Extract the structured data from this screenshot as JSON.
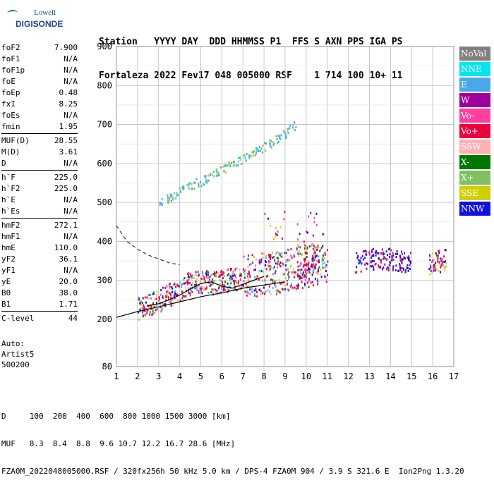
{
  "logo": {
    "line1": "Lowell",
    "line2": "DIGISONDE"
  },
  "header": {
    "row1": "Station   YYYY DAY  DDD HHMMSS P1  FFS S AXN PPS IGA PS",
    "row2": "Fortaleza 2022 Fev17 048 005000 RSF    1 714 100 10+ 11"
  },
  "params": {
    "group1": [
      {
        "label": "foF2",
        "value": "7.900"
      },
      {
        "label": "foF1",
        "value": "N/A"
      },
      {
        "label": "foF1p",
        "value": "N/A"
      },
      {
        "label": "foE",
        "value": "N/A"
      },
      {
        "label": "foEp",
        "value": "0.48"
      },
      {
        "label": "fxI",
        "value": "8.25"
      },
      {
        "label": "foEs",
        "value": "N/A"
      },
      {
        "label": "fmin",
        "value": "1.95"
      }
    ],
    "group2": [
      {
        "label": "MUF(D)",
        "value": "28.55"
      },
      {
        "label": "M(D)",
        "value": "3.61"
      },
      {
        "label": "D",
        "value": "N/A"
      }
    ],
    "group3": [
      {
        "label": "h`F",
        "value": "225.0"
      },
      {
        "label": "h`F2",
        "value": "225.0"
      },
      {
        "label": "h`E",
        "value": "N/A"
      },
      {
        "label": "h`Es",
        "value": "N/A"
      }
    ],
    "group4": [
      {
        "label": "hmF2",
        "value": "272.1"
      },
      {
        "label": "hmF1",
        "value": "N/A"
      },
      {
        "label": "hmE",
        "value": "110.0"
      },
      {
        "label": "yF2",
        "value": "36.1"
      },
      {
        "label": "yF1",
        "value": "N/A"
      },
      {
        "label": "yE",
        "value": "20.0"
      },
      {
        "label": "B0",
        "value": "38.0"
      },
      {
        "label": "B1",
        "value": "1.71"
      }
    ],
    "group5": [
      {
        "label": "C-level",
        "value": "44"
      }
    ]
  },
  "auto": {
    "line1": "Auto:",
    "line2": "Artist5",
    "line3": "500200"
  },
  "legend": [
    {
      "label": "NoVal",
      "color": "#808080"
    },
    {
      "label": "NNE",
      "color": "#00e5ee"
    },
    {
      "label": "E",
      "color": "#4aa8e8"
    },
    {
      "label": "W",
      "color": "#9e009e"
    },
    {
      "label": "Vo-",
      "color": "#ff40a0"
    },
    {
      "label": "Vo+",
      "color": "#ee0040"
    },
    {
      "label": "SSW",
      "color": "#ffb0b0"
    },
    {
      "label": "X-",
      "color": "#007800"
    },
    {
      "label": "X+",
      "color": "#80c060"
    },
    {
      "label": "SSE",
      "color": "#d0d000"
    },
    {
      "label": "NNW",
      "color": "#1010e0"
    }
  ],
  "chart_data": {
    "type": "scatter",
    "xlim": [
      1,
      17
    ],
    "ylim": [
      80,
      900
    ],
    "x_ticks": [
      "1",
      "2",
      "3",
      "4",
      "5",
      "6",
      "7",
      "8",
      "9",
      "10",
      "11",
      "12",
      "13",
      "14",
      "15",
      "16",
      "17"
    ],
    "y_ticks": [
      "80",
      "200",
      "300",
      "400",
      "500",
      "600",
      "700",
      "800",
      "900"
    ],
    "grid": true,
    "echo_bands": [
      {
        "name": "F-trace",
        "x": [
          2.0,
          2.5,
          3.0,
          3.5,
          4.0,
          4.5,
          5.0,
          5.5,
          6.0,
          6.5,
          7.0,
          7.5,
          8.0,
          8.5,
          9.0,
          9.5,
          10.0,
          10.5,
          11.0
        ],
        "y": [
          230,
          240,
          250,
          265,
          280,
          295,
          300,
          295,
          300,
          305,
          310,
          315,
          320,
          320,
          330,
          335,
          340,
          340,
          345
        ]
      },
      {
        "name": "F2-echo-spread",
        "x": [
          9.5,
          10.0,
          10.5
        ],
        "y": [
          300,
          320,
          360
        ]
      },
      {
        "name": "second-hop",
        "x": [
          3.0,
          3.5,
          4.0,
          4.5,
          5.0,
          5.5,
          6.0,
          6.5,
          7.0,
          7.5,
          8.0,
          8.5,
          9.0,
          9.5
        ],
        "y": [
          500,
          515,
          530,
          545,
          555,
          570,
          585,
          600,
          615,
          630,
          645,
          660,
          680,
          700
        ]
      },
      {
        "name": "nnw-cluster",
        "x": [
          12.3,
          13.0,
          13.5,
          14.0,
          14.5,
          15.0
        ],
        "y": [
          350,
          355,
          360,
          355,
          350,
          350
        ]
      },
      {
        "name": "right-cluster",
        "x": [
          15.8,
          16.2,
          16.6
        ],
        "y": [
          345,
          350,
          355
        ]
      }
    ],
    "profile_dashed": {
      "x": [
        1.0,
        1.5,
        2.0,
        2.5,
        3.0,
        3.5,
        4.0
      ],
      "y": [
        440,
        400,
        380,
        365,
        355,
        345,
        340
      ]
    },
    "model_lines": [
      {
        "name": "lower",
        "x": [
          1,
          2,
          3,
          4,
          5,
          6,
          7,
          8,
          9
        ],
        "y": [
          205,
          220,
          232,
          245,
          258,
          268,
          280,
          288,
          296
        ]
      },
      {
        "name": "upper",
        "x": [
          2.5,
          3,
          3.5,
          4,
          4.5,
          5,
          5.5,
          6,
          6.5,
          7,
          7.5,
          8
        ],
        "y": [
          235,
          240,
          250,
          262,
          278,
          292,
          296,
          285,
          280,
          290,
          300,
          310
        ]
      }
    ]
  },
  "footer": {
    "row1": "D     100  200  400  600  800 1000 1500 3000 [km]",
    "row2": "MUF   8.3  8.4  8.8  9.6 10.7 12.2 16.7 28.6 [MHz]",
    "row3": "FZA0M_2022048005000.RSF / 320fx256h 50 kHz 5.0 km / DPS-4 FZA0M 904 / 3.9 S 321.6 E  Ion2Png 1.3.20"
  }
}
